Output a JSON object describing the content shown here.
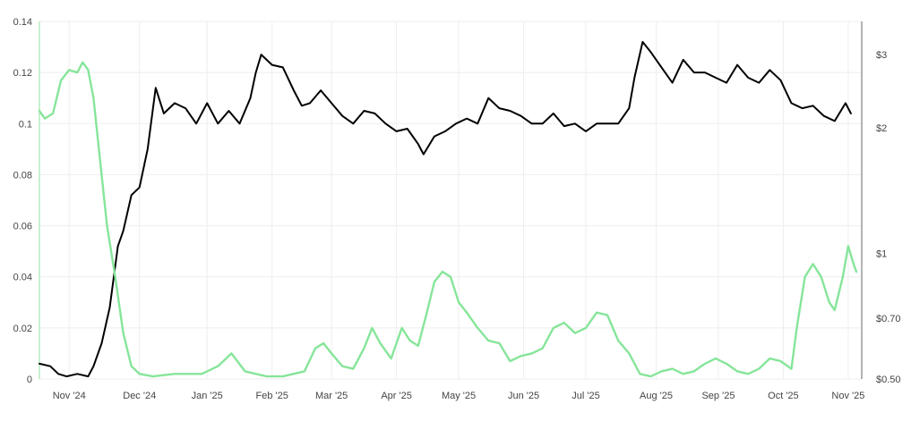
{
  "chart_data": {
    "type": "line",
    "x_labels": [
      "Nov '24",
      "Dec '24",
      "Jan '25",
      "Feb '25",
      "Mar '25",
      "Apr '25",
      "May '25",
      "Jun '25",
      "Jul '25",
      "Aug '25",
      "Sep '25",
      "Oct '25",
      "Nov '25"
    ],
    "left_axis": {
      "ticks": [
        0,
        0.02,
        0.04,
        0.06,
        0.08,
        0.1,
        0.12,
        0.14
      ],
      "tick_labels": [
        "0",
        "0.02",
        "0.04",
        "0.06",
        "0.08",
        "0.1",
        "0.12",
        "0.14"
      ],
      "range": [
        0,
        0.14
      ]
    },
    "right_axis": {
      "scale": "log",
      "ticks": [
        0.5,
        0.7,
        1,
        2,
        3
      ],
      "tick_labels": [
        "$0.50",
        "$0.70",
        "$1",
        "$2",
        "$3"
      ],
      "range": [
        0.5,
        3.6
      ]
    },
    "colors": {
      "black_series": "#000000",
      "green_series": "#86e59a",
      "right_axis_line": "#9a9a9a",
      "left_axis_line": "#b4ecbf"
    },
    "grid": true,
    "series": [
      {
        "color": "#000000",
        "axis": "left",
        "points": [
          [
            0,
            0.006
          ],
          [
            0.2,
            0.005
          ],
          [
            0.35,
            0.002
          ],
          [
            0.5,
            0.001
          ],
          [
            0.7,
            0.002
          ],
          [
            0.9,
            0.001
          ],
          [
            1.0,
            0.005
          ],
          [
            1.15,
            0.014
          ],
          [
            1.3,
            0.028
          ],
          [
            1.45,
            0.052
          ],
          [
            1.55,
            0.058
          ],
          [
            1.7,
            0.072
          ],
          [
            1.85,
            0.075
          ],
          [
            2.0,
            0.09
          ],
          [
            2.15,
            0.114
          ],
          [
            2.3,
            0.104
          ],
          [
            2.5,
            0.108
          ],
          [
            2.7,
            0.106
          ],
          [
            2.9,
            0.1
          ],
          [
            3.1,
            0.108
          ],
          [
            3.3,
            0.1
          ],
          [
            3.5,
            0.105
          ],
          [
            3.7,
            0.1
          ],
          [
            3.9,
            0.11
          ],
          [
            4.0,
            0.12
          ],
          [
            4.1,
            0.127
          ],
          [
            4.3,
            0.123
          ],
          [
            4.5,
            0.122
          ],
          [
            4.7,
            0.113
          ],
          [
            4.85,
            0.107
          ],
          [
            5.0,
            0.108
          ],
          [
            5.2,
            0.113
          ],
          [
            5.4,
            0.108
          ],
          [
            5.6,
            0.103
          ],
          [
            5.8,
            0.1
          ],
          [
            6.0,
            0.105
          ],
          [
            6.2,
            0.104
          ],
          [
            6.4,
            0.1
          ],
          [
            6.6,
            0.097
          ],
          [
            6.8,
            0.098
          ],
          [
            7.0,
            0.092
          ],
          [
            7.1,
            0.088
          ],
          [
            7.3,
            0.095
          ],
          [
            7.5,
            0.097
          ],
          [
            7.7,
            0.1
          ],
          [
            7.9,
            0.102
          ],
          [
            8.1,
            0.1
          ],
          [
            8.3,
            0.11
          ],
          [
            8.5,
            0.106
          ],
          [
            8.7,
            0.105
          ],
          [
            8.9,
            0.103
          ],
          [
            9.1,
            0.1
          ],
          [
            9.3,
            0.1
          ],
          [
            9.5,
            0.104
          ],
          [
            9.7,
            0.099
          ],
          [
            9.9,
            0.1
          ],
          [
            10.1,
            0.097
          ],
          [
            10.3,
            0.1
          ],
          [
            10.5,
            0.1
          ],
          [
            10.7,
            0.1
          ],
          [
            10.9,
            0.106
          ],
          [
            11.0,
            0.118
          ],
          [
            11.15,
            0.132
          ],
          [
            11.3,
            0.128
          ],
          [
            11.5,
            0.122
          ],
          [
            11.7,
            0.116
          ],
          [
            11.9,
            0.125
          ],
          [
            12.1,
            0.12
          ],
          [
            12.3,
            0.12
          ],
          [
            12.5,
            0.118
          ],
          [
            12.7,
            0.116
          ],
          [
            12.9,
            0.123
          ],
          [
            13.1,
            0.118
          ],
          [
            13.3,
            0.116
          ],
          [
            13.5,
            0.121
          ],
          [
            13.7,
            0.117
          ],
          [
            13.9,
            0.108
          ],
          [
            14.1,
            0.106
          ],
          [
            14.3,
            0.107
          ],
          [
            14.5,
            0.103
          ],
          [
            14.7,
            0.101
          ],
          [
            14.9,
            0.108
          ],
          [
            15.0,
            0.104
          ]
        ]
      },
      {
        "color": "#86e59a",
        "axis": "left",
        "points": [
          [
            0,
            0.105
          ],
          [
            0.1,
            0.102
          ],
          [
            0.25,
            0.104
          ],
          [
            0.4,
            0.117
          ],
          [
            0.55,
            0.121
          ],
          [
            0.7,
            0.12
          ],
          [
            0.8,
            0.124
          ],
          [
            0.9,
            0.121
          ],
          [
            1.0,
            0.11
          ],
          [
            1.1,
            0.09
          ],
          [
            1.25,
            0.06
          ],
          [
            1.4,
            0.04
          ],
          [
            1.55,
            0.018
          ],
          [
            1.7,
            0.005
          ],
          [
            1.85,
            0.002
          ],
          [
            2.1,
            0.001
          ],
          [
            2.5,
            0.002
          ],
          [
            3.0,
            0.002
          ],
          [
            3.3,
            0.005
          ],
          [
            3.55,
            0.01
          ],
          [
            3.8,
            0.003
          ],
          [
            4.2,
            0.001
          ],
          [
            4.5,
            0.001
          ],
          [
            4.9,
            0.003
          ],
          [
            5.1,
            0.012
          ],
          [
            5.25,
            0.014
          ],
          [
            5.4,
            0.01
          ],
          [
            5.6,
            0.005
          ],
          [
            5.8,
            0.004
          ],
          [
            6.0,
            0.012
          ],
          [
            6.15,
            0.02
          ],
          [
            6.3,
            0.014
          ],
          [
            6.5,
            0.008
          ],
          [
            6.7,
            0.02
          ],
          [
            6.85,
            0.015
          ],
          [
            7.0,
            0.013
          ],
          [
            7.15,
            0.025
          ],
          [
            7.3,
            0.038
          ],
          [
            7.45,
            0.042
          ],
          [
            7.6,
            0.04
          ],
          [
            7.75,
            0.03
          ],
          [
            7.9,
            0.026
          ],
          [
            8.1,
            0.02
          ],
          [
            8.3,
            0.015
          ],
          [
            8.5,
            0.014
          ],
          [
            8.7,
            0.007
          ],
          [
            8.9,
            0.009
          ],
          [
            9.1,
            0.01
          ],
          [
            9.3,
            0.012
          ],
          [
            9.5,
            0.02
          ],
          [
            9.7,
            0.022
          ],
          [
            9.9,
            0.018
          ],
          [
            10.1,
            0.02
          ],
          [
            10.3,
            0.026
          ],
          [
            10.5,
            0.025
          ],
          [
            10.7,
            0.015
          ],
          [
            10.9,
            0.01
          ],
          [
            11.1,
            0.002
          ],
          [
            11.3,
            0.001
          ],
          [
            11.5,
            0.003
          ],
          [
            11.7,
            0.004
          ],
          [
            11.9,
            0.002
          ],
          [
            12.1,
            0.003
          ],
          [
            12.3,
            0.006
          ],
          [
            12.5,
            0.008
          ],
          [
            12.7,
            0.006
          ],
          [
            12.9,
            0.003
          ],
          [
            13.1,
            0.002
          ],
          [
            13.3,
            0.004
          ],
          [
            13.5,
            0.008
          ],
          [
            13.7,
            0.007
          ],
          [
            13.9,
            0.004
          ],
          [
            14.0,
            0.02
          ],
          [
            14.15,
            0.04
          ],
          [
            14.3,
            0.045
          ],
          [
            14.45,
            0.04
          ],
          [
            14.6,
            0.03
          ],
          [
            14.7,
            0.027
          ],
          [
            14.85,
            0.04
          ],
          [
            14.95,
            0.052
          ],
          [
            15.05,
            0.045
          ],
          [
            15.1,
            0.042
          ]
        ]
      }
    ]
  }
}
